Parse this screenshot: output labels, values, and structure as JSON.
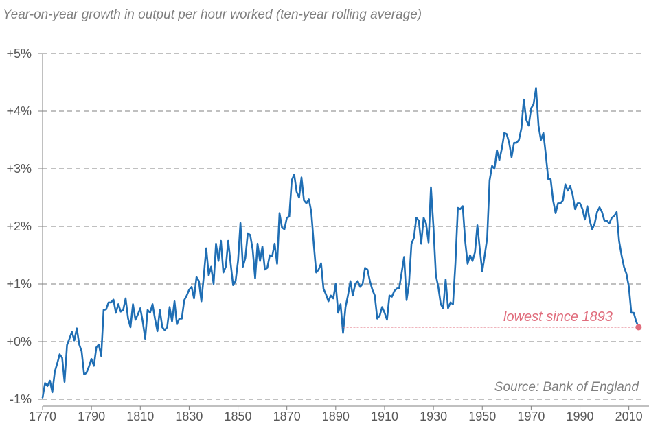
{
  "chart_data": {
    "type": "line",
    "title": "Year-on-year growth in output per hour worked (ten-year rolling average)",
    "source": "Source: Bank of England",
    "xlim": [
      1770,
      2016
    ],
    "ylim": [
      -1,
      5
    ],
    "x_ticks": [
      1770,
      1790,
      1810,
      1830,
      1850,
      1870,
      1890,
      1910,
      1930,
      1950,
      1970,
      1990,
      2010
    ],
    "y_ticks": [
      -1,
      0,
      1,
      2,
      3,
      4,
      5
    ],
    "y_tick_labels": [
      "-1%",
      "+0%",
      "+1%",
      "+2%",
      "+3%",
      "+4%",
      "+5%"
    ],
    "grid": "horizontal dashed",
    "series": [
      {
        "color": "#1f6eb4",
        "points": [
          [
            1770,
            -0.97
          ],
          [
            1771,
            -0.72
          ],
          [
            1772,
            -0.77
          ],
          [
            1773,
            -0.68
          ],
          [
            1774,
            -0.88
          ],
          [
            1775,
            -0.52
          ],
          [
            1776,
            -0.38
          ],
          [
            1777,
            -0.22
          ],
          [
            1778,
            -0.28
          ],
          [
            1779,
            -0.7
          ],
          [
            1780,
            -0.06
          ],
          [
            1781,
            0.05
          ],
          [
            1782,
            0.17
          ],
          [
            1783,
            0.02
          ],
          [
            1784,
            0.23
          ],
          [
            1785,
            -0.05
          ],
          [
            1786,
            -0.17
          ],
          [
            1787,
            -0.57
          ],
          [
            1788,
            -0.54
          ],
          [
            1789,
            -0.43
          ],
          [
            1790,
            -0.3
          ],
          [
            1791,
            -0.42
          ],
          [
            1792,
            -0.1
          ],
          [
            1793,
            -0.05
          ],
          [
            1794,
            -0.25
          ],
          [
            1795,
            0.55
          ],
          [
            1796,
            0.56
          ],
          [
            1797,
            0.68
          ],
          [
            1798,
            0.68
          ],
          [
            1799,
            0.73
          ],
          [
            1800,
            0.5
          ],
          [
            1801,
            0.65
          ],
          [
            1802,
            0.52
          ],
          [
            1803,
            0.55
          ],
          [
            1804,
            0.75
          ],
          [
            1805,
            0.4
          ],
          [
            1806,
            0.25
          ],
          [
            1807,
            0.65
          ],
          [
            1808,
            0.38
          ],
          [
            1809,
            0.47
          ],
          [
            1810,
            0.58
          ],
          [
            1811,
            0.35
          ],
          [
            1812,
            0.05
          ],
          [
            1813,
            0.55
          ],
          [
            1814,
            0.5
          ],
          [
            1815,
            0.65
          ],
          [
            1816,
            0.4
          ],
          [
            1817,
            0.18
          ],
          [
            1818,
            0.55
          ],
          [
            1819,
            0.25
          ],
          [
            1820,
            0.2
          ],
          [
            1821,
            0.25
          ],
          [
            1822,
            0.6
          ],
          [
            1823,
            0.35
          ],
          [
            1824,
            0.7
          ],
          [
            1825,
            0.3
          ],
          [
            1826,
            0.4
          ],
          [
            1827,
            0.4
          ],
          [
            1828,
            0.72
          ],
          [
            1829,
            0.8
          ],
          [
            1830,
            0.9
          ],
          [
            1831,
            0.95
          ],
          [
            1832,
            0.75
          ],
          [
            1833,
            1.12
          ],
          [
            1834,
            1.05
          ],
          [
            1835,
            0.7
          ],
          [
            1836,
            1.15
          ],
          [
            1837,
            1.62
          ],
          [
            1838,
            1.15
          ],
          [
            1839,
            1.3
          ],
          [
            1840,
            1.0
          ],
          [
            1841,
            1.7
          ],
          [
            1842,
            1.4
          ],
          [
            1843,
            1.75
          ],
          [
            1844,
            1.2
          ],
          [
            1845,
            1.3
          ],
          [
            1846,
            1.75
          ],
          [
            1847,
            1.35
          ],
          [
            1848,
            0.98
          ],
          [
            1849,
            1.05
          ],
          [
            1850,
            1.4
          ],
          [
            1851,
            2.06
          ],
          [
            1852,
            1.3
          ],
          [
            1853,
            1.45
          ],
          [
            1854,
            1.88
          ],
          [
            1855,
            1.85
          ],
          [
            1856,
            1.6
          ],
          [
            1857,
            1.1
          ],
          [
            1858,
            1.7
          ],
          [
            1859,
            1.4
          ],
          [
            1860,
            1.65
          ],
          [
            1861,
            1.25
          ],
          [
            1862,
            1.28
          ],
          [
            1863,
            1.5
          ],
          [
            1864,
            1.48
          ],
          [
            1865,
            1.7
          ],
          [
            1866,
            1.35
          ],
          [
            1867,
            2.23
          ],
          [
            1868,
            1.98
          ],
          [
            1869,
            1.95
          ],
          [
            1870,
            2.15
          ],
          [
            1871,
            2.17
          ],
          [
            1872,
            2.8
          ],
          [
            1873,
            2.9
          ],
          [
            1874,
            2.6
          ],
          [
            1875,
            2.5
          ],
          [
            1876,
            2.85
          ],
          [
            1877,
            2.45
          ],
          [
            1878,
            2.4
          ],
          [
            1879,
            2.47
          ],
          [
            1880,
            2.25
          ],
          [
            1881,
            1.7
          ],
          [
            1882,
            1.2
          ],
          [
            1883,
            1.25
          ],
          [
            1884,
            1.36
          ],
          [
            1885,
            0.92
          ],
          [
            1886,
            0.82
          ],
          [
            1887,
            0.7
          ],
          [
            1888,
            0.8
          ],
          [
            1889,
            0.75
          ],
          [
            1890,
            1.0
          ],
          [
            1891,
            0.5
          ],
          [
            1892,
            0.65
          ],
          [
            1893,
            0.15
          ],
          [
            1894,
            0.6
          ],
          [
            1895,
            0.8
          ],
          [
            1896,
            1.05
          ],
          [
            1897,
            0.8
          ],
          [
            1898,
            1.0
          ],
          [
            1899,
            1.05
          ],
          [
            1900,
            0.95
          ],
          [
            1901,
            1.0
          ],
          [
            1902,
            1.28
          ],
          [
            1903,
            1.25
          ],
          [
            1904,
            1.05
          ],
          [
            1905,
            0.9
          ],
          [
            1906,
            0.8
          ],
          [
            1907,
            0.4
          ],
          [
            1908,
            0.45
          ],
          [
            1909,
            0.6
          ],
          [
            1910,
            0.5
          ],
          [
            1911,
            0.38
          ],
          [
            1912,
            0.8
          ],
          [
            1913,
            0.78
          ],
          [
            1914,
            0.88
          ],
          [
            1915,
            0.92
          ],
          [
            1916,
            0.93
          ],
          [
            1917,
            1.2
          ],
          [
            1918,
            1.47
          ],
          [
            1919,
            0.72
          ],
          [
            1920,
            1.0
          ],
          [
            1921,
            1.7
          ],
          [
            1922,
            1.8
          ],
          [
            1923,
            2.15
          ],
          [
            1924,
            2.1
          ],
          [
            1925,
            1.7
          ],
          [
            1926,
            2.15
          ],
          [
            1927,
            2.05
          ],
          [
            1928,
            1.72
          ],
          [
            1929,
            2.68
          ],
          [
            1930,
            2.0
          ],
          [
            1931,
            1.15
          ],
          [
            1932,
            0.95
          ],
          [
            1933,
            0.65
          ],
          [
            1934,
            0.58
          ],
          [
            1935,
            1.08
          ],
          [
            1936,
            0.58
          ],
          [
            1937,
            0.68
          ],
          [
            1938,
            0.65
          ],
          [
            1939,
            1.35
          ],
          [
            1940,
            2.32
          ],
          [
            1941,
            2.3
          ],
          [
            1942,
            2.35
          ],
          [
            1943,
            1.75
          ],
          [
            1944,
            1.35
          ],
          [
            1945,
            1.5
          ],
          [
            1946,
            1.4
          ],
          [
            1947,
            1.55
          ],
          [
            1948,
            2.02
          ],
          [
            1949,
            1.6
          ],
          [
            1950,
            1.22
          ],
          [
            1951,
            1.5
          ],
          [
            1952,
            1.8
          ],
          [
            1953,
            2.8
          ],
          [
            1954,
            3.05
          ],
          [
            1955,
            3.0
          ],
          [
            1956,
            3.32
          ],
          [
            1957,
            3.15
          ],
          [
            1958,
            3.35
          ],
          [
            1959,
            3.62
          ],
          [
            1960,
            3.6
          ],
          [
            1961,
            3.45
          ],
          [
            1962,
            3.2
          ],
          [
            1963,
            3.45
          ],
          [
            1964,
            3.45
          ],
          [
            1965,
            3.5
          ],
          [
            1966,
            3.7
          ],
          [
            1967,
            4.2
          ],
          [
            1968,
            3.85
          ],
          [
            1969,
            3.75
          ],
          [
            1970,
            4.05
          ],
          [
            1971,
            4.12
          ],
          [
            1972,
            4.4
          ],
          [
            1973,
            3.75
          ],
          [
            1974,
            3.5
          ],
          [
            1975,
            3.62
          ],
          [
            1976,
            3.25
          ],
          [
            1977,
            2.82
          ],
          [
            1978,
            2.82
          ],
          [
            1979,
            2.45
          ],
          [
            1980,
            2.23
          ],
          [
            1981,
            2.4
          ],
          [
            1982,
            2.4
          ],
          [
            1983,
            2.45
          ],
          [
            1984,
            2.73
          ],
          [
            1985,
            2.62
          ],
          [
            1986,
            2.7
          ],
          [
            1987,
            2.55
          ],
          [
            1988,
            2.3
          ],
          [
            1989,
            2.4
          ],
          [
            1990,
            2.4
          ],
          [
            1991,
            2.3
          ],
          [
            1992,
            2.12
          ],
          [
            1993,
            2.35
          ],
          [
            1994,
            2.1
          ],
          [
            1995,
            1.95
          ],
          [
            1996,
            2.05
          ],
          [
            1997,
            2.25
          ],
          [
            1998,
            2.33
          ],
          [
            1999,
            2.25
          ],
          [
            2000,
            2.1
          ],
          [
            2001,
            2.1
          ],
          [
            2002,
            2.05
          ],
          [
            2003,
            2.15
          ],
          [
            2004,
            2.18
          ],
          [
            2005,
            2.25
          ],
          [
            2006,
            1.75
          ],
          [
            2007,
            1.5
          ],
          [
            2008,
            1.3
          ],
          [
            2009,
            1.18
          ],
          [
            2010,
            0.95
          ],
          [
            2011,
            0.5
          ],
          [
            2012,
            0.5
          ],
          [
            2013,
            0.35
          ],
          [
            2014,
            0.25
          ]
        ]
      }
    ],
    "annotation": {
      "text": "lowest since 1893",
      "x": 2014,
      "y": 0.25,
      "from_x": 1893,
      "color": "#e06c7c"
    }
  }
}
